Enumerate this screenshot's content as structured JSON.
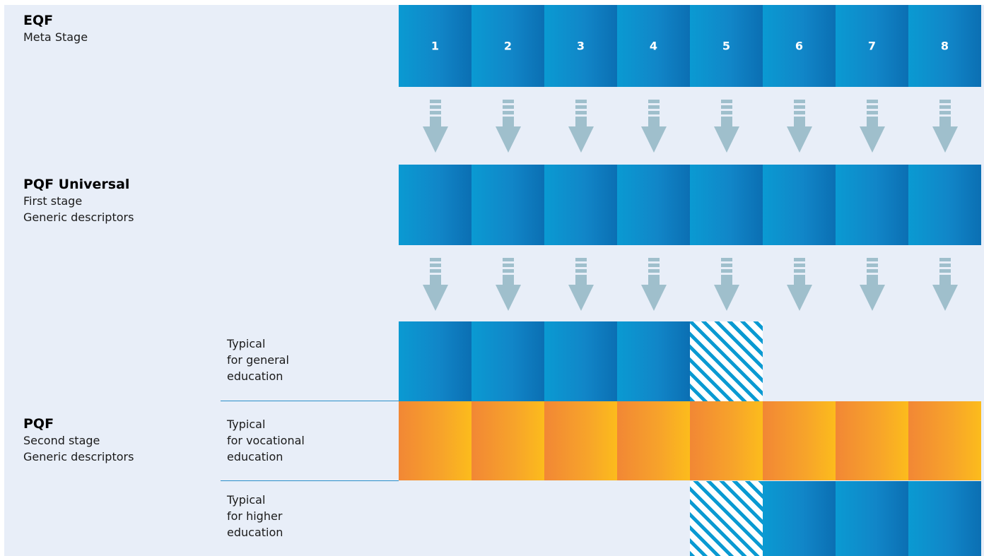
{
  "eqf": {
    "title": "EQF",
    "subtitle": "Meta Stage",
    "levels": [
      "1",
      "2",
      "3",
      "4",
      "5",
      "6",
      "7",
      "8"
    ]
  },
  "pqf_universal": {
    "title": "PQF Universal",
    "line1": "First stage",
    "line2": "Generic descriptors"
  },
  "pqf": {
    "title": "PQF",
    "line1": "Second stage",
    "line2": "Generic descriptors"
  },
  "rows": {
    "general": {
      "label": "Typical\nfor general\neducation",
      "cells": [
        "blue",
        "blue",
        "blue",
        "blue",
        "hatch",
        "empty",
        "empty",
        "empty"
      ]
    },
    "vocational": {
      "label": "Typical\nfor vocational\neducation",
      "cells": [
        "orange",
        "orange",
        "orange",
        "orange",
        "orange",
        "orange",
        "orange",
        "orange"
      ]
    },
    "higher": {
      "label": "Typical\nfor higher\neducation",
      "cells": [
        "empty",
        "empty",
        "empty",
        "empty",
        "hatch",
        "blue",
        "blue",
        "blue"
      ]
    }
  },
  "colors": {
    "background": "#e8eef8",
    "blue": "#1186c8",
    "orange": "#f7a42a",
    "arrow": "#9fbfcc",
    "separator": "#2b8fca"
  },
  "icons": {
    "arrow": "down-arrow-icon"
  }
}
